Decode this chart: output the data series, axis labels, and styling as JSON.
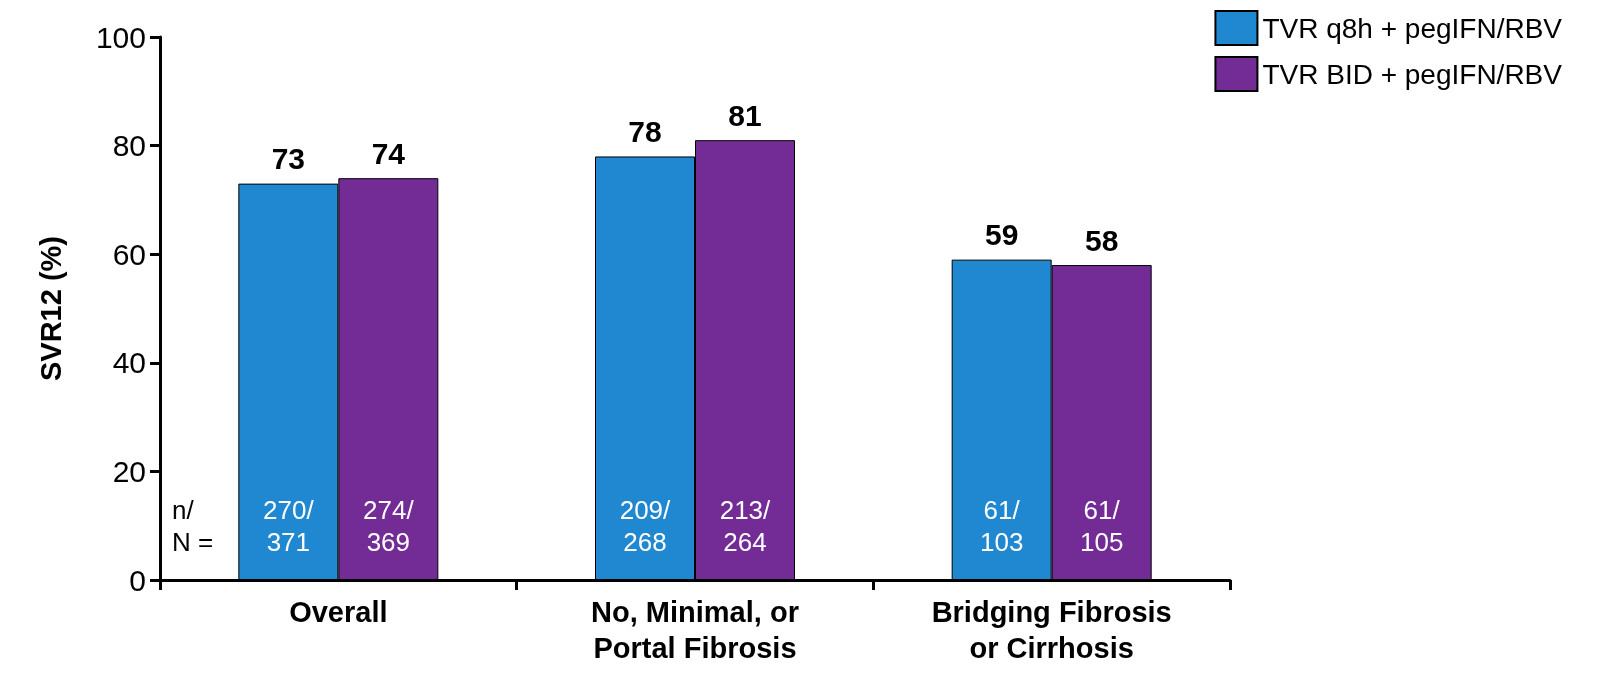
{
  "chart_data": {
    "type": "bar",
    "ylabel": "SVR12 (%)",
    "categories": [
      "Overall",
      "No, Minimal, or\nPortal Fibrosis",
      "Bridging Fibrosis\nor Cirrhosis"
    ],
    "series": [
      {
        "name": "TVR q8h + pegIFN/RBV",
        "color": "#1f88d0",
        "values": [
          73,
          78,
          59
        ]
      },
      {
        "name": "TVR BID + pegIFN/RBV",
        "color": "#732c96",
        "values": [
          74,
          81,
          58
        ]
      }
    ],
    "ylim": [
      0,
      100
    ],
    "yticks": [
      0,
      20,
      40,
      60,
      80,
      100
    ],
    "data_labels": true,
    "legend": "top right",
    "grid": false,
    "annotations": [
      "n/\nN =",
      "270/\n371",
      "274/\n369",
      "209/\n268",
      "213/\n264",
      "61/\n103",
      "61/\n105"
    ]
  }
}
